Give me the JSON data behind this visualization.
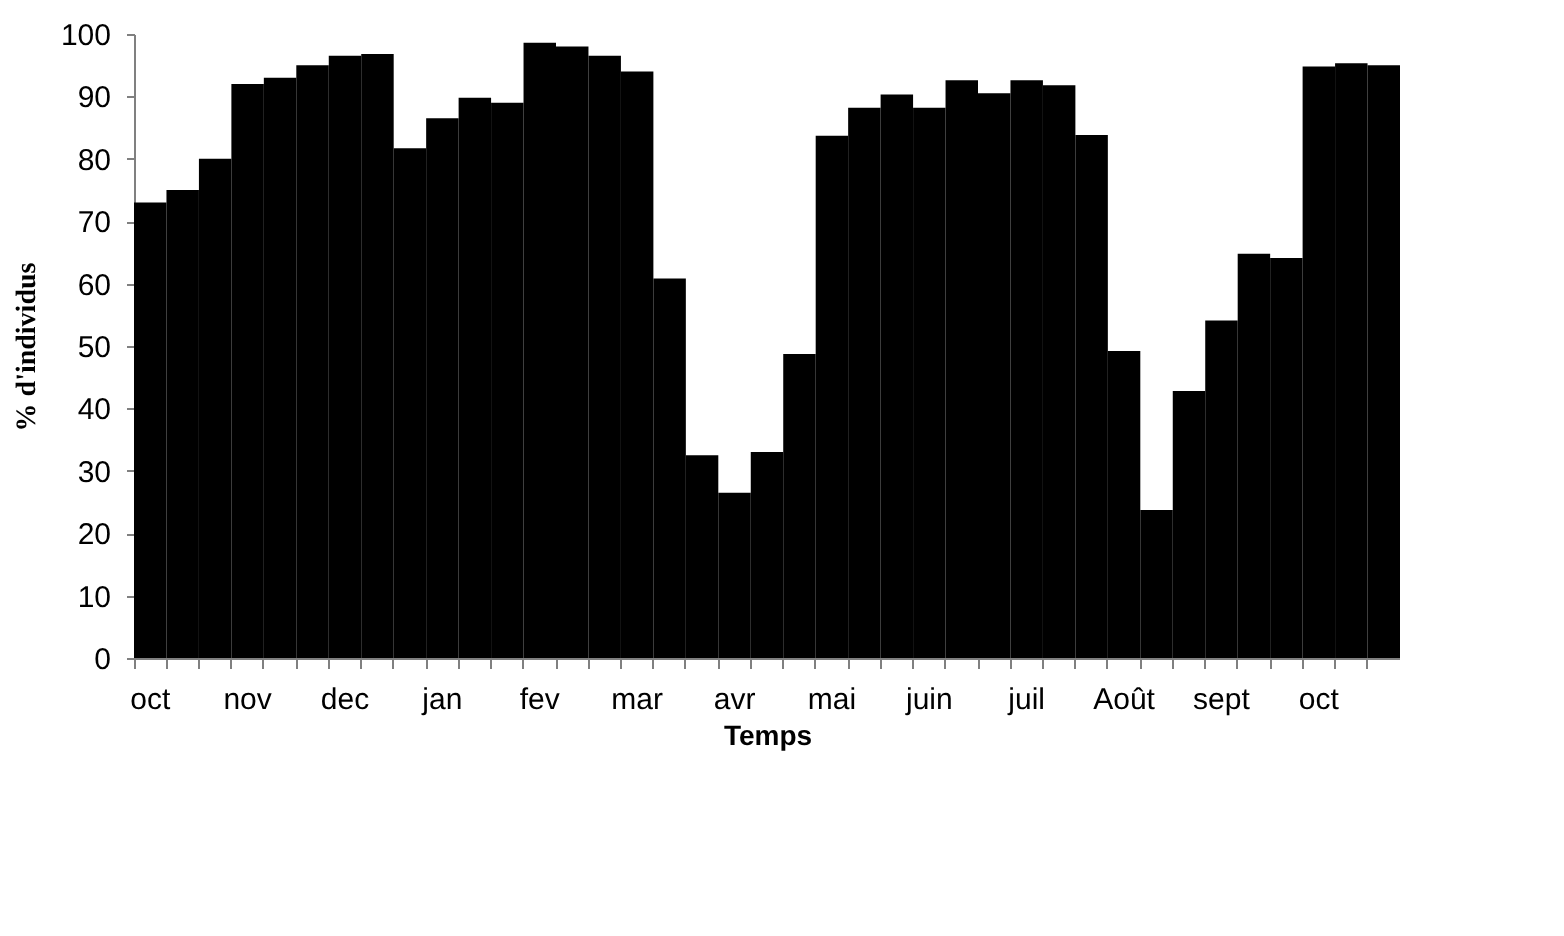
{
  "chart_data": {
    "type": "bar",
    "xlabel": "Temps",
    "ylabel": "% d'individus",
    "categories": [
      "oct",
      null,
      null,
      "nov",
      null,
      null,
      "dec",
      null,
      null,
      "jan",
      null,
      null,
      "fev",
      null,
      null,
      "mar",
      null,
      null,
      "avr",
      null,
      null,
      "mai",
      null,
      null,
      "juin",
      null,
      null,
      "juil",
      null,
      null,
      "Août",
      null,
      null,
      "sept",
      null,
      null,
      "oct",
      null,
      null
    ],
    "values": [
      73,
      75,
      80,
      92,
      93,
      95,
      96.5,
      96.8,
      81.7,
      86.5,
      89.8,
      89,
      98.6,
      98,
      96.5,
      94,
      60.8,
      32.5,
      26.5,
      33,
      48.7,
      83.7,
      88.2,
      90.3,
      88.2,
      92.6,
      90.5,
      92.6,
      91.8,
      83.8,
      49.2,
      23.7,
      42.8,
      54.1,
      64.8,
      64.1,
      94.8,
      95.3,
      95
    ],
    "color": "#000000",
    "ylim": [
      0,
      100
    ],
    "yticks": [
      0,
      10,
      20,
      30,
      40,
      50,
      60,
      70,
      80,
      90,
      100
    ],
    "grid": false
  }
}
